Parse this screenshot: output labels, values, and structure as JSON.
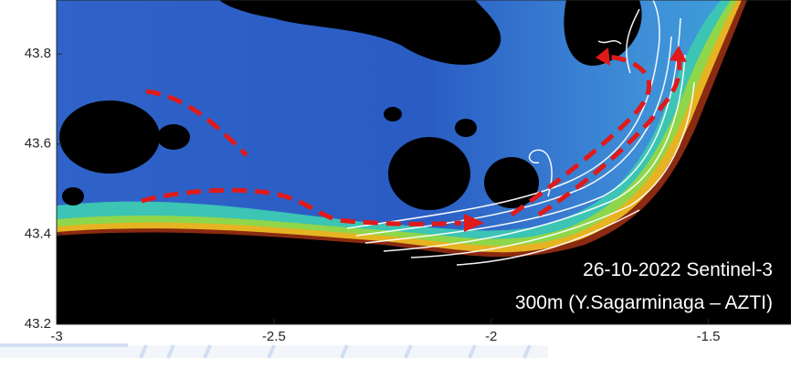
{
  "chart_data": {
    "type": "map",
    "xlim": [
      -3,
      -1.31
    ],
    "ylim": [
      43.2,
      43.92
    ],
    "xticks": [
      -3,
      -2.5,
      -2,
      -1.5
    ],
    "yticks": [
      43.2,
      43.4,
      43.6,
      43.8
    ],
    "annotations": [
      "26-10-2022 Sentinel-3",
      "300m (Y.Sagarminaga – AZTI)"
    ]
  }
}
